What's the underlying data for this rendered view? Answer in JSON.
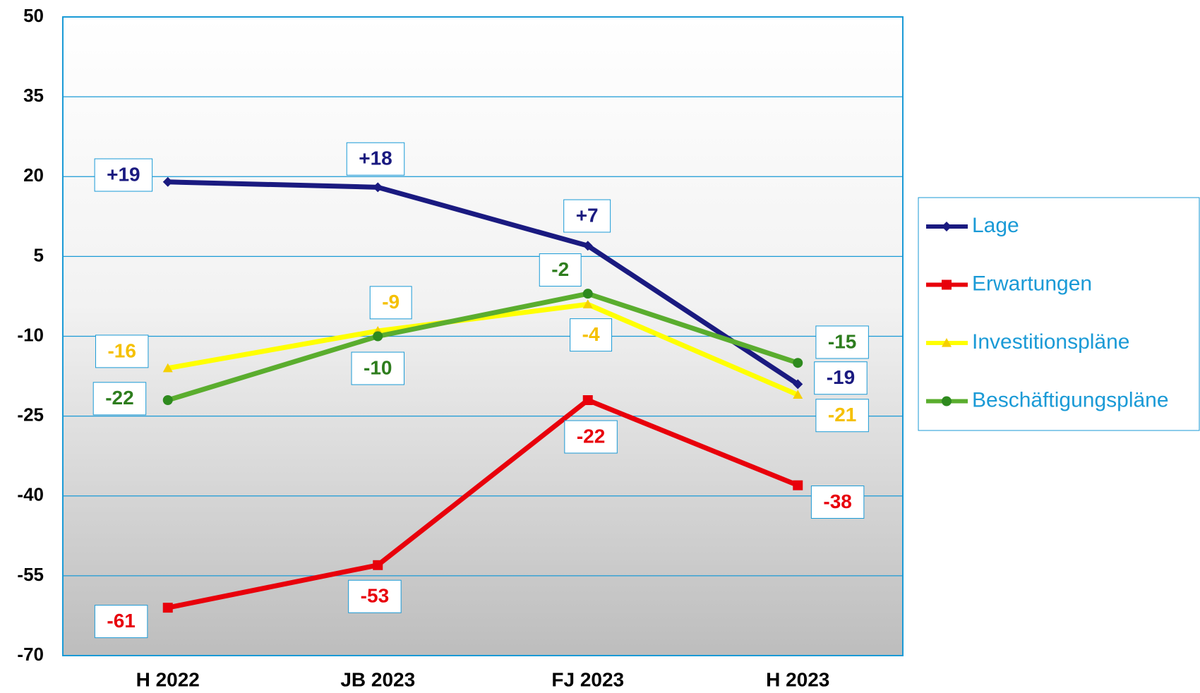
{
  "chart_data": {
    "type": "line",
    "categories": [
      "H 2022",
      "JB 2023",
      "FJ 2023",
      "H 2023"
    ],
    "series": [
      {
        "name": "Lage",
        "color": "#1a1a80",
        "label_color": "#1a1a80",
        "marker": "diamond",
        "values": [
          19,
          18,
          7,
          -19
        ],
        "value_labels": [
          "+19",
          "+18",
          "+7",
          "-19"
        ]
      },
      {
        "name": "Erwartungen",
        "color": "#e8000b",
        "label_color": "#e8000b",
        "marker": "square",
        "values": [
          -61,
          -53,
          -22,
          -38
        ]
      },
      {
        "name": "Investitionspläne",
        "color": "#ffff00",
        "label_color": "#f5c000",
        "marker": "triangle",
        "values": [
          -16,
          -9,
          -4,
          -21
        ]
      },
      {
        "name": "Beschäftigungspläne",
        "color": "#5aad2e",
        "label_color": "#2e7d1e",
        "marker": "circle",
        "values": [
          -22,
          -10,
          -2,
          -15
        ]
      }
    ],
    "ylim": [
      -70,
      50
    ],
    "yticks": [
      -70,
      -55,
      -40,
      -25,
      -10,
      5,
      20,
      35,
      50
    ],
    "grid": true,
    "legend": "right"
  }
}
